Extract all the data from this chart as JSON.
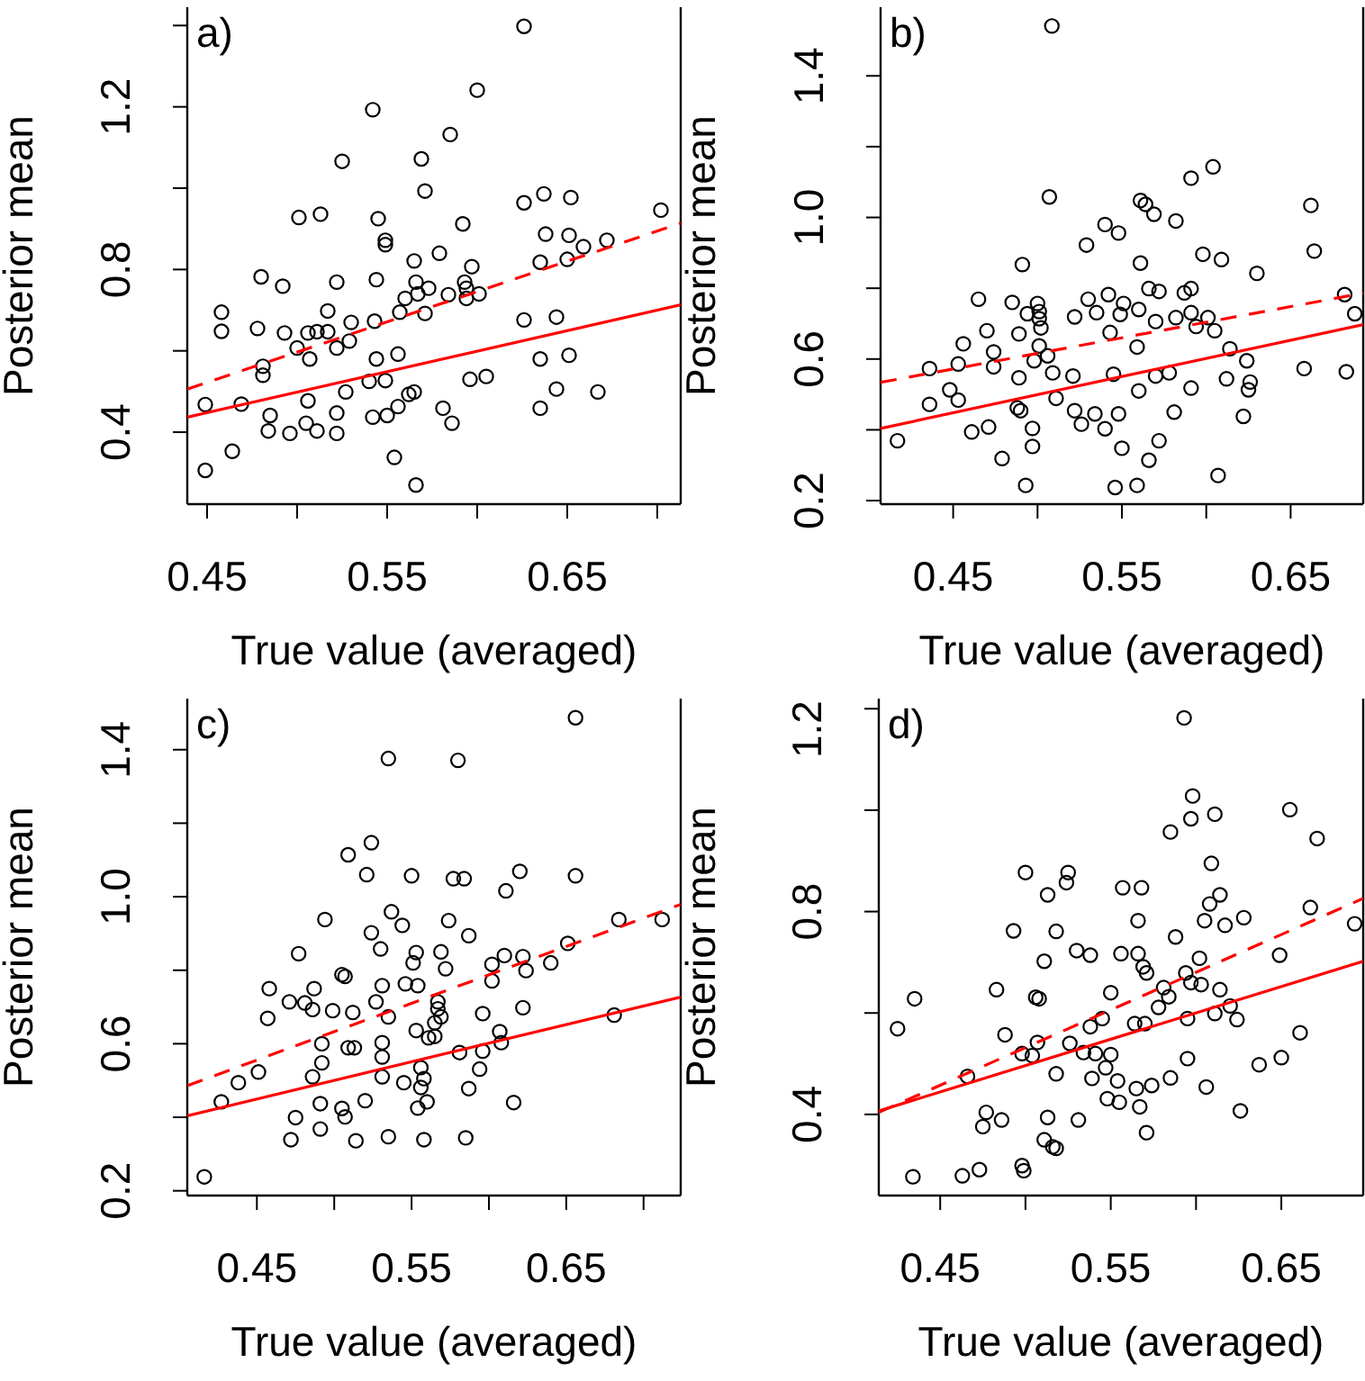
{
  "chart_data": [
    {
      "type": "scatter",
      "xlabel": "True value (averaged)",
      "ylabel": "Posterior mean",
      "annotations": [
        "a)"
      ],
      "marker": "circle",
      "xlim": [
        0.439,
        0.713
      ],
      "ylim": [
        0.223,
        1.445
      ],
      "xticks": [
        0.45,
        {
          "value": 0.5,
          "label": null
        },
        0.55,
        {
          "value": 0.6,
          "label": null
        },
        0.65,
        {
          "value": 0.7,
          "label": null
        }
      ],
      "yticks": [
        0.4,
        {
          "value": 0.6,
          "label": null
        },
        0.8,
        {
          "value": 1.0,
          "label": null
        },
        1.2,
        {
          "value": 1.4,
          "label": null
        }
      ],
      "series": [
        {
          "color": "#000000",
          "x": [
            0.626,
            0.6,
            0.542,
            0.585,
            0.525,
            0.569,
            0.571,
            0.626,
            0.637,
            0.652,
            0.702,
            0.501,
            0.513,
            0.545,
            0.549,
            0.549,
            0.592,
            0.638,
            0.651,
            0.659,
            0.672,
            0.565,
            0.579,
            0.635,
            0.65,
            0.597,
            0.48,
            0.492,
            0.522,
            0.544,
            0.566,
            0.573,
            0.584,
            0.593,
            0.594,
            0.56,
            0.567,
            0.571,
            0.594,
            0.601,
            0.557,
            0.458,
            0.458,
            0.478,
            0.517,
            0.53,
            0.543,
            0.493,
            0.506,
            0.511,
            0.517,
            0.5,
            0.507,
            0.522,
            0.529,
            0.544,
            0.556,
            0.626,
            0.644,
            0.635,
            0.651,
            0.481,
            0.481,
            0.449,
            0.469,
            0.506,
            0.527,
            0.54,
            0.549,
            0.565,
            0.562,
            0.556,
            0.581,
            0.586,
            0.596,
            0.605,
            0.644,
            0.635,
            0.667,
            0.485,
            0.484,
            0.496,
            0.505,
            0.511,
            0.522,
            0.522,
            0.542,
            0.55,
            0.464,
            0.449,
            0.554,
            0.566
          ],
          "values": [
            1.398,
            1.241,
            1.193,
            1.132,
            1.066,
            1.072,
            0.993,
            0.964,
            0.986,
            0.977,
            0.946,
            0.928,
            0.936,
            0.925,
            0.872,
            0.861,
            0.912,
            0.887,
            0.884,
            0.856,
            0.872,
            0.821,
            0.84,
            0.818,
            0.825,
            0.807,
            0.782,
            0.759,
            0.769,
            0.775,
            0.769,
            0.754,
            0.738,
            0.769,
            0.754,
            0.729,
            0.74,
            0.692,
            0.729,
            0.74,
            0.695,
            0.695,
            0.648,
            0.655,
            0.698,
            0.67,
            0.673,
            0.644,
            0.644,
            0.647,
            0.647,
            0.607,
            0.58,
            0.607,
            0.624,
            0.58,
            0.592,
            0.676,
            0.683,
            0.58,
            0.589,
            0.562,
            0.54,
            0.468,
            0.469,
            0.477,
            0.499,
            0.525,
            0.527,
            0.499,
            0.493,
            0.463,
            0.459,
            0.422,
            0.53,
            0.537,
            0.506,
            0.459,
            0.499,
            0.441,
            0.403,
            0.397,
            0.422,
            0.403,
            0.447,
            0.397,
            0.437,
            0.441,
            0.353,
            0.306,
            0.338,
            0.27
          ]
        },
        {
          "type": "line",
          "color": "#ff0000",
          "marker": "none",
          "line_style": "dashed",
          "x": [
            0.439,
            0.713
          ],
          "values": [
            0.506,
            0.914
          ]
        },
        {
          "type": "line",
          "color": "#ff0000",
          "marker": "none",
          "line_style": "solid",
          "x": [
            0.439,
            0.713
          ],
          "values": [
            0.437,
            0.713
          ]
        }
      ]
    },
    {
      "type": "scatter",
      "xlabel": "True value (averaged)",
      "ylabel": "Posterior mean",
      "annotations": [
        "b)"
      ],
      "marker": "circle",
      "xlim": [
        0.407,
        0.693
      ],
      "ylim": [
        0.19,
        1.594
      ],
      "xticks": [
        0.45,
        {
          "value": 0.5,
          "label": null
        },
        0.55,
        {
          "value": 0.6,
          "label": null
        },
        0.65
      ],
      "yticks": [
        0.2,
        {
          "value": 0.4,
          "label": null
        },
        0.6,
        {
          "value": 0.8,
          "label": null
        },
        {
          "value": 1.0,
          "label": "1.0"
        },
        {
          "value": 1.2,
          "label": null
        },
        1.4
      ],
      "series": [
        {
          "color": "#000000",
          "x": [
            0.5085,
            0.507,
            0.561,
            0.564,
            0.569,
            0.582,
            0.591,
            0.604,
            0.662,
            0.664,
            0.54,
            0.548,
            0.529,
            0.491,
            0.561,
            0.598,
            0.609,
            0.63,
            0.566,
            0.572,
            0.587,
            0.591,
            0.465,
            0.485,
            0.5,
            0.501,
            0.501,
            0.494,
            0.53,
            0.542,
            0.551,
            0.56,
            0.522,
            0.535,
            0.549,
            0.57,
            0.582,
            0.591,
            0.601,
            0.594,
            0.605,
            0.47,
            0.489,
            0.502,
            0.543,
            0.559,
            0.614,
            0.682,
            0.688,
            0.456,
            0.474,
            0.501,
            0.453,
            0.436,
            0.474,
            0.498,
            0.506,
            0.509,
            0.521,
            0.489,
            0.545,
            0.57,
            0.578,
            0.624,
            0.612,
            0.626,
            0.625,
            0.658,
            0.683,
            0.448,
            0.436,
            0.453,
            0.591,
            0.56,
            0.511,
            0.522,
            0.526,
            0.488,
            0.49,
            0.534,
            0.548,
            0.581,
            0.622,
            0.54,
            0.497,
            0.471,
            0.461,
            0.417,
            0.479,
            0.497,
            0.55,
            0.572,
            0.566,
            0.607,
            0.493,
            0.546,
            0.559
          ],
          "values": [
            1.541,
            1.058,
            1.048,
            1.037,
            1.009,
            0.99,
            1.111,
            1.143,
            1.034,
            0.905,
            0.98,
            0.956,
            0.922,
            0.867,
            0.871,
            0.896,
            0.881,
            0.842,
            0.799,
            0.791,
            0.787,
            0.799,
            0.769,
            0.76,
            0.757,
            0.734,
            0.714,
            0.728,
            0.769,
            0.782,
            0.757,
            0.74,
            0.719,
            0.731,
            0.726,
            0.706,
            0.717,
            0.731,
            0.717,
            0.692,
            0.68,
            0.68,
            0.671,
            0.688,
            0.675,
            0.634,
            0.629,
            0.782,
            0.728,
            0.643,
            0.62,
            0.637,
            0.586,
            0.573,
            0.578,
            0.595,
            0.609,
            0.561,
            0.552,
            0.547,
            0.557,
            0.552,
            0.561,
            0.595,
            0.544,
            0.535,
            0.513,
            0.573,
            0.564,
            0.513,
            0.472,
            0.484,
            0.518,
            0.51,
            0.489,
            0.454,
            0.416,
            0.462,
            0.454,
            0.445,
            0.445,
            0.45,
            0.438,
            0.403,
            0.404,
            0.408,
            0.394,
            0.369,
            0.319,
            0.353,
            0.348,
            0.369,
            0.314,
            0.271,
            0.243,
            0.237,
            0.243
          ]
        },
        {
          "type": "line",
          "color": "#ff0000",
          "marker": "none",
          "line_style": "dashed",
          "x": [
            0.407,
            0.693
          ],
          "values": [
            0.534,
            0.786
          ]
        },
        {
          "type": "line",
          "color": "#ff0000",
          "marker": "none",
          "line_style": "solid",
          "x": [
            0.407,
            0.693
          ],
          "values": [
            0.404,
            0.697
          ]
        }
      ]
    },
    {
      "type": "scatter",
      "xlabel": "True value (averaged)",
      "ylabel": "Posterior mean",
      "annotations": [
        "c)"
      ],
      "marker": "circle",
      "xlim": [
        0.405,
        0.724
      ],
      "ylim": [
        0.187,
        1.539
      ],
      "xticks": [
        0.45,
        {
          "value": 0.5,
          "label": null
        },
        0.55,
        {
          "value": 0.6,
          "label": null
        },
        0.65,
        {
          "value": 0.7,
          "label": null
        }
      ],
      "yticks": [
        0.2,
        {
          "value": 0.4,
          "label": null
        },
        0.6,
        {
          "value": 0.8,
          "label": null
        },
        {
          "value": 1.0,
          "label": "1.0"
        },
        {
          "value": 1.2,
          "label": null
        },
        1.4
      ],
      "series": [
        {
          "color": "#000000",
          "x": [
            0.656,
            0.535,
            0.58,
            0.524,
            0.509,
            0.521,
            0.55,
            0.577,
            0.584,
            0.611,
            0.62,
            0.656,
            0.494,
            0.537,
            0.544,
            0.574,
            0.587,
            0.684,
            0.712,
            0.524,
            0.53,
            0.477,
            0.553,
            0.551,
            0.569,
            0.572,
            0.61,
            0.622,
            0.602,
            0.624,
            0.64,
            0.651,
            0.602,
            0.505,
            0.507,
            0.458,
            0.487,
            0.531,
            0.546,
            0.554,
            0.471,
            0.481,
            0.486,
            0.499,
            0.512,
            0.527,
            0.535,
            0.567,
            0.567,
            0.569,
            0.565,
            0.622,
            0.596,
            0.457,
            0.681,
            0.553,
            0.561,
            0.565,
            0.607,
            0.608,
            0.492,
            0.509,
            0.513,
            0.531,
            0.531,
            0.581,
            0.596,
            0.492,
            0.451,
            0.438,
            0.427,
            0.486,
            0.531,
            0.545,
            0.556,
            0.558,
            0.556,
            0.594,
            0.587,
            0.52,
            0.491,
            0.505,
            0.507,
            0.554,
            0.56,
            0.616,
            0.475,
            0.491,
            0.472,
            0.514,
            0.535,
            0.558,
            0.585,
            0.416
          ],
          "values": [
            1.487,
            1.376,
            1.371,
            1.147,
            1.114,
            1.06,
            1.057,
            1.049,
            1.049,
            1.016,
            1.069,
            1.057,
            0.938,
            0.959,
            0.922,
            0.935,
            0.894,
            0.938,
            0.938,
            0.902,
            0.858,
            0.845,
            0.848,
            0.82,
            0.85,
            0.804,
            0.84,
            0.837,
            0.816,
            0.799,
            0.82,
            0.873,
            0.771,
            0.788,
            0.783,
            0.75,
            0.75,
            0.758,
            0.763,
            0.758,
            0.714,
            0.711,
            0.693,
            0.69,
            0.685,
            0.714,
            0.673,
            0.714,
            0.695,
            0.673,
            0.657,
            0.698,
            0.682,
            0.669,
            0.678,
            0.636,
            0.616,
            0.62,
            0.633,
            0.603,
            0.6,
            0.589,
            0.589,
            0.603,
            0.564,
            0.576,
            0.58,
            0.548,
            0.523,
            0.494,
            0.442,
            0.51,
            0.51,
            0.494,
            0.535,
            0.505,
            0.481,
            0.531,
            0.478,
            0.445,
            0.437,
            0.424,
            0.401,
            0.425,
            0.442,
            0.44,
            0.399,
            0.368,
            0.339,
            0.336,
            0.347,
            0.339,
            0.344,
            0.238
          ]
        },
        {
          "type": "line",
          "color": "#ff0000",
          "marker": "none",
          "line_style": "dashed",
          "x": [
            0.405,
            0.724
          ],
          "values": [
            0.486,
            0.979
          ]
        },
        {
          "type": "line",
          "color": "#ff0000",
          "marker": "none",
          "line_style": "solid",
          "x": [
            0.405,
            0.724
          ],
          "values": [
            0.404,
            0.727
          ]
        }
      ]
    },
    {
      "type": "scatter",
      "xlabel": "True value (averaged)",
      "ylabel": "Posterior mean",
      "annotations": [
        "d)"
      ],
      "marker": "circle",
      "xlim": [
        0.414,
        0.698
      ],
      "ylim": [
        0.24,
        1.22
      ],
      "xticks": [
        0.45,
        {
          "value": 0.5,
          "label": null
        },
        0.55,
        {
          "value": 0.6,
          "label": null
        },
        0.65
      ],
      "yticks": [
        0.4,
        {
          "value": 0.6,
          "label": null
        },
        0.8,
        {
          "value": 1.0,
          "label": null
        },
        1.2
      ],
      "series": [
        {
          "color": "#000000",
          "x": [
            0.593,
            0.598,
            0.597,
            0.611,
            0.585,
            0.655,
            0.671,
            0.609,
            0.5,
            0.525,
            0.524,
            0.513,
            0.557,
            0.568,
            0.614,
            0.608,
            0.667,
            0.605,
            0.566,
            0.617,
            0.628,
            0.693,
            0.493,
            0.518,
            0.588,
            0.53,
            0.538,
            0.556,
            0.566,
            0.569,
            0.571,
            0.602,
            0.649,
            0.511,
            0.594,
            0.597,
            0.603,
            0.614,
            0.581,
            0.584,
            0.483,
            0.506,
            0.508,
            0.55,
            0.435,
            0.425,
            0.578,
            0.611,
            0.62,
            0.624,
            0.595,
            0.564,
            0.57,
            0.545,
            0.538,
            0.488,
            0.661,
            0.507,
            0.498,
            0.504,
            0.526,
            0.534,
            0.541,
            0.55,
            0.547,
            0.595,
            0.637,
            0.65,
            0.466,
            0.518,
            0.539,
            0.554,
            0.565,
            0.574,
            0.585,
            0.606,
            0.548,
            0.555,
            0.567,
            0.626,
            0.477,
            0.475,
            0.486,
            0.513,
            0.531,
            0.511,
            0.516,
            0.518,
            0.571,
            0.434,
            0.463,
            0.473,
            0.498,
            0.499
          ],
          "values": [
            1.182,
            1.028,
            0.983,
            0.992,
            0.957,
            1.001,
            0.944,
            0.895,
            0.877,
            0.877,
            0.857,
            0.833,
            0.847,
            0.847,
            0.833,
            0.815,
            0.808,
            0.782,
            0.782,
            0.773,
            0.788,
            0.776,
            0.762,
            0.761,
            0.75,
            0.723,
            0.714,
            0.717,
            0.717,
            0.691,
            0.679,
            0.708,
            0.714,
            0.702,
            0.679,
            0.66,
            0.656,
            0.646,
            0.65,
            0.632,
            0.646,
            0.631,
            0.628,
            0.64,
            0.628,
            0.569,
            0.611,
            0.599,
            0.614,
            0.587,
            0.589,
            0.579,
            0.579,
            0.589,
            0.573,
            0.557,
            0.561,
            0.542,
            0.52,
            0.516,
            0.54,
            0.522,
            0.52,
            0.518,
            0.492,
            0.51,
            0.498,
            0.512,
            0.475,
            0.48,
            0.471,
            0.466,
            0.451,
            0.457,
            0.472,
            0.454,
            0.431,
            0.424,
            0.415,
            0.407,
            0.404,
            0.376,
            0.389,
            0.394,
            0.389,
            0.35,
            0.336,
            0.333,
            0.364,
            0.277,
            0.279,
            0.291,
            0.299,
            0.289
          ]
        },
        {
          "type": "line",
          "color": "#ff0000",
          "marker": "none",
          "line_style": "dashed",
          "x": [
            0.414,
            0.698
          ],
          "values": [
            0.404,
            0.826
          ]
        },
        {
          "type": "line",
          "color": "#ff0000",
          "marker": "none",
          "line_style": "solid",
          "x": [
            0.414,
            0.698
          ],
          "values": [
            0.407,
            0.702
          ]
        }
      ]
    }
  ]
}
